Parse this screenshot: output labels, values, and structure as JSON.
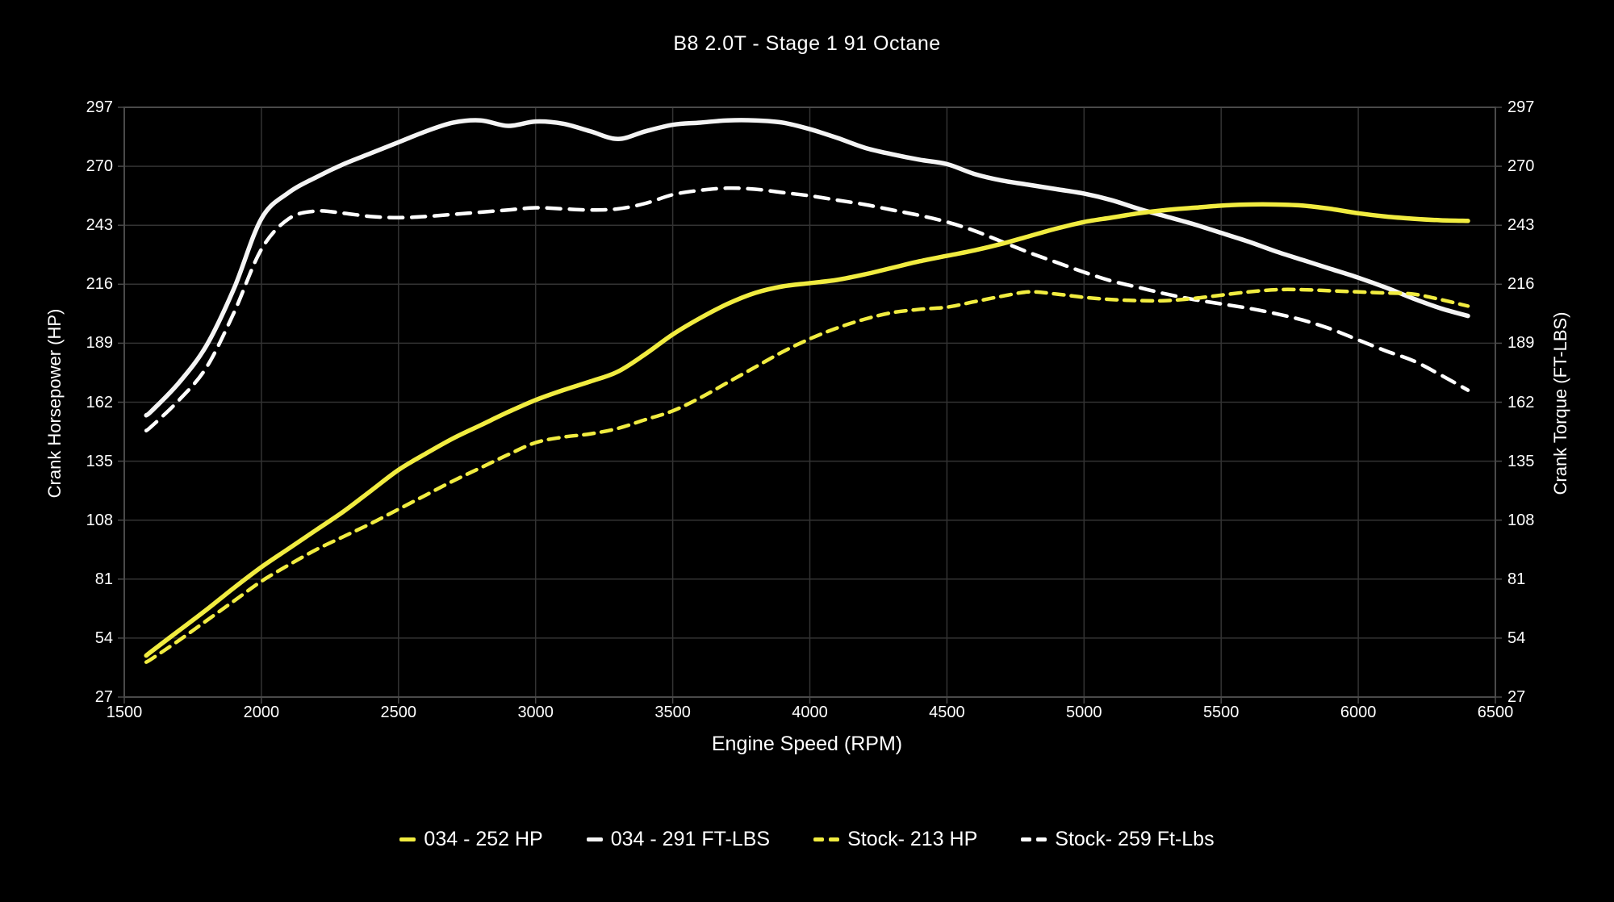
{
  "title": "B8 2.0T - Stage 1 91 Octane",
  "axes": {
    "x": {
      "label": "Engine Speed (RPM)",
      "ticks": [
        1500,
        2000,
        2500,
        3000,
        3500,
        4000,
        4500,
        5000,
        5500,
        6000,
        6500
      ],
      "range": [
        1500,
        6500
      ]
    },
    "y_left": {
      "label": "Crank Horsepower (HP)",
      "ticks": [
        27,
        54,
        81,
        108,
        135,
        162,
        189,
        216,
        243,
        270,
        297
      ],
      "range": [
        27,
        297
      ]
    },
    "y_right": {
      "label": "Crank Torque (FT-LBS)",
      "ticks": [
        27,
        54,
        81,
        108,
        135,
        162,
        189,
        216,
        243,
        270,
        297
      ],
      "range": [
        27,
        297
      ]
    }
  },
  "colors": {
    "background": "#000000",
    "yellow_accent": "#F1EC40",
    "white_line": "#F4F4F4",
    "gridline": "#333333",
    "axis_border": "#4a4a4a",
    "text": "#FFFFFF"
  },
  "legend": [
    {
      "label": "034 - 252 HP",
      "color": "#F1EC40",
      "dash": "solid"
    },
    {
      "label": "034 - 291 FT-LBS",
      "color": "#F4F4F4",
      "dash": "solid"
    },
    {
      "label": "Stock- 213 HP",
      "color": "#F1EC40",
      "dash": "dashed"
    },
    {
      "label": "Stock- 259 Ft-Lbs",
      "color": "#FFFFFF",
      "dash": "dashed"
    }
  ],
  "chart_data": {
    "type": "line",
    "title": "B8 2.0T - Stage 1 91 Octane",
    "xlabel": "Engine Speed (RPM)",
    "ylabel_left": "Crank Horsepower (HP)",
    "ylabel_right": "Crank Torque (FT-LBS)",
    "xlim": [
      1500,
      6500
    ],
    "ylim": [
      27,
      297
    ],
    "grid": true,
    "legend_position": "bottom",
    "x": [
      1580,
      1600,
      1700,
      1800,
      1900,
      2000,
      2100,
      2200,
      2300,
      2400,
      2500,
      2600,
      2700,
      2800,
      2900,
      3000,
      3100,
      3200,
      3300,
      3400,
      3500,
      3600,
      3700,
      3800,
      3900,
      4000,
      4100,
      4200,
      4300,
      4400,
      4500,
      4600,
      4700,
      4800,
      4900,
      5000,
      5100,
      5200,
      5300,
      5400,
      5500,
      5600,
      5700,
      5800,
      5900,
      6000,
      6100,
      6200,
      6300,
      6400
    ],
    "series": [
      {
        "name": "Stock- 259 Ft-Lbs",
        "axis": "torque",
        "color": "#FFFFFF",
        "style": "dashed",
        "peak": 259,
        "values": [
          149,
          151,
          163,
          178,
          203,
          232,
          246,
          249.5,
          248.5,
          247,
          246.5,
          247,
          248,
          249,
          250,
          251,
          250.5,
          250,
          250.5,
          253,
          257,
          259,
          260,
          259.5,
          258,
          256.5,
          254.5,
          252.5,
          250,
          247.5,
          244.5,
          240.5,
          235.5,
          230.5,
          226,
          221.5,
          217.5,
          214.5,
          211.5,
          209,
          207,
          205,
          202.5,
          199.5,
          195.5,
          190.5,
          185.5,
          181,
          174.5,
          167.5
        ]
      },
      {
        "name": "034 - 291 FT-LBS",
        "axis": "torque",
        "color": "#F4F4F4",
        "style": "solid",
        "peak": 291,
        "values": [
          156,
          158,
          171,
          188,
          214,
          246,
          258,
          265,
          271,
          276,
          281,
          286,
          290,
          291,
          288.5,
          290.5,
          289.5,
          286,
          282.5,
          286,
          289,
          290,
          291,
          291,
          290,
          287,
          283,
          278.5,
          275.5,
          273,
          271,
          266.5,
          263.5,
          261.5,
          259.5,
          257.5,
          254.5,
          250.5,
          247,
          243.5,
          239.5,
          235.5,
          231,
          227,
          223,
          219,
          214.5,
          209.5,
          205,
          201.5
        ]
      },
      {
        "name": "Stock- 213 HP",
        "axis": "hp",
        "color": "#F1EC40",
        "style": "dashed",
        "peak": 213,
        "values": [
          43,
          44.5,
          53,
          62,
          71,
          80,
          87.5,
          94.5,
          100.5,
          106.5,
          113,
          119.5,
          126,
          132,
          138,
          143.5,
          146,
          147.5,
          150,
          154,
          158,
          164,
          171,
          178,
          185,
          191,
          196,
          200,
          203,
          204.5,
          205.5,
          208,
          210.5,
          212.5,
          211.5,
          210,
          209,
          208.5,
          208.5,
          209.5,
          211,
          212.5,
          213.5,
          213.5,
          213,
          212.5,
          212,
          211.5,
          209,
          206
        ]
      },
      {
        "name": "034 - 252 HP",
        "axis": "hp",
        "color": "#F1EC40",
        "style": "solid",
        "peak": 252,
        "values": [
          46,
          48,
          57.5,
          67,
          77,
          86.5,
          95,
          103.5,
          112,
          121.5,
          131,
          138.5,
          145.5,
          151.5,
          157.5,
          163,
          167.5,
          171.5,
          176,
          184,
          193,
          200.5,
          207,
          212,
          215,
          216.5,
          218,
          220.5,
          223.5,
          226.5,
          229,
          231.5,
          234.5,
          238,
          241.5,
          244.5,
          246.5,
          248.5,
          250,
          251,
          252,
          252.5,
          252.5,
          252,
          250.5,
          248.5,
          247,
          246,
          245.3,
          245
        ]
      }
    ]
  }
}
